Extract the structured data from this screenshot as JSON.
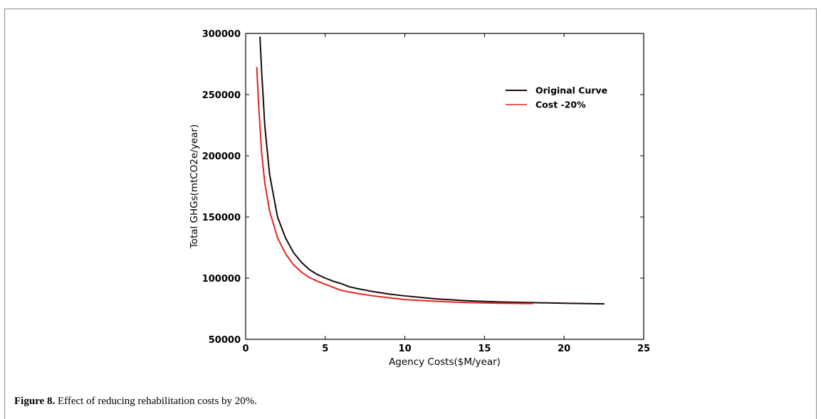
{
  "caption": {
    "label": "Figure 8.",
    "text": "Effect of reducing rehabilitation costs by 20%."
  },
  "colors": {
    "original": "#1a0a0a",
    "reduced": "#e8231f",
    "axis": "#000000"
  },
  "chart_data": {
    "type": "line",
    "xlabel": "Agency Costs($M/year)",
    "ylabel": "Total GHGs(mtCO2e/year)",
    "xlim": [
      0,
      25
    ],
    "ylim": [
      50000,
      300000
    ],
    "xticks": [
      0,
      5,
      10,
      15,
      20,
      25
    ],
    "yticks": [
      50000,
      100000,
      150000,
      200000,
      250000,
      300000
    ],
    "grid": false,
    "legend_position": "top-right",
    "series": [
      {
        "name": "Original Curve",
        "x": [
          0.9,
          1.0,
          1.2,
          1.5,
          2.0,
          2.5,
          3.0,
          3.5,
          4.0,
          4.5,
          5.0,
          5.5,
          6.0,
          6.5,
          7.0,
          8.0,
          9.0,
          10.0,
          12.0,
          14.0,
          16.0,
          18.0,
          20.0,
          22.5
        ],
        "y": [
          297000,
          270000,
          225000,
          185000,
          150000,
          133000,
          121000,
          113000,
          107000,
          103000,
          100000,
          97500,
          95500,
          93000,
          91500,
          89000,
          87000,
          85500,
          83000,
          81500,
          80500,
          80000,
          79500,
          79000
        ]
      },
      {
        "name": "Cost -20%",
        "x": [
          0.7,
          0.8,
          1.0,
          1.2,
          1.5,
          2.0,
          2.5,
          3.0,
          3.5,
          4.0,
          4.5,
          5.0,
          5.5,
          6.0,
          7.0,
          8.0,
          9.0,
          10.0,
          12.0,
          14.0,
          16.0,
          18.0
        ],
        "y": [
          272000,
          245000,
          203000,
          178000,
          155000,
          133000,
          120000,
          111000,
          105000,
          100500,
          97500,
          95000,
          92500,
          90000,
          87500,
          85500,
          84000,
          82500,
          81000,
          80000,
          79500,
          79200
        ]
      }
    ]
  }
}
